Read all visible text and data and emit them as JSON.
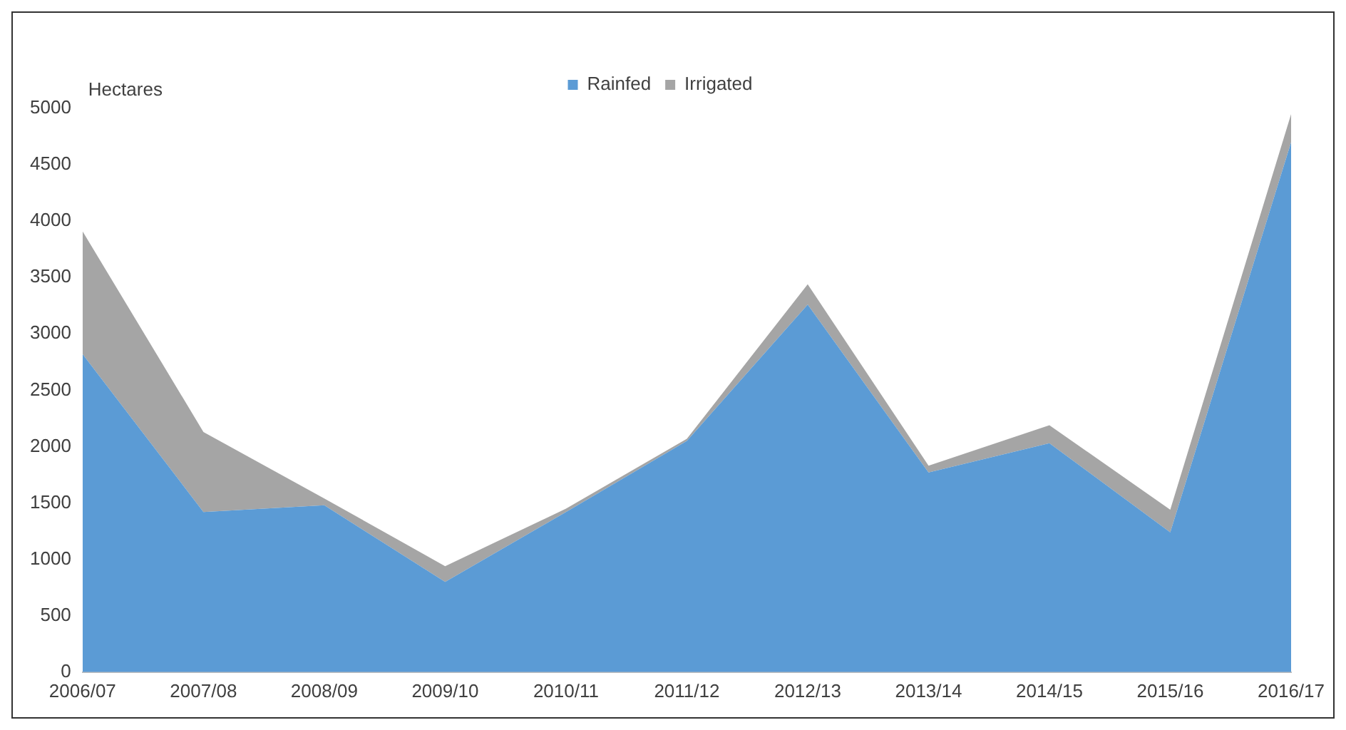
{
  "chart_data": {
    "type": "area",
    "stacked": true,
    "ylabel": "Hectares",
    "categories": [
      "2006/07",
      "2007/08",
      "2008/09",
      "2009/10",
      "2010/11",
      "2011/12",
      "2012/13",
      "2013/14",
      "2014/15",
      "2015/16",
      "2016/17"
    ],
    "series": [
      {
        "name": "Rainfed",
        "color": "#5b9bd5",
        "values": [
          2820,
          1420,
          1480,
          800,
          1420,
          2050,
          3260,
          1770,
          2030,
          1240,
          4700
        ]
      },
      {
        "name": "Irrigated",
        "color": "#a5a5a5",
        "values": [
          1090,
          710,
          60,
          140,
          30,
          20,
          180,
          60,
          160,
          200,
          250
        ]
      }
    ],
    "ylim": [
      0,
      5000
    ],
    "yticks": [
      0,
      500,
      1000,
      1500,
      2000,
      2500,
      3000,
      3500,
      4000,
      4500,
      5000
    ],
    "grid": false,
    "legend": "top"
  }
}
